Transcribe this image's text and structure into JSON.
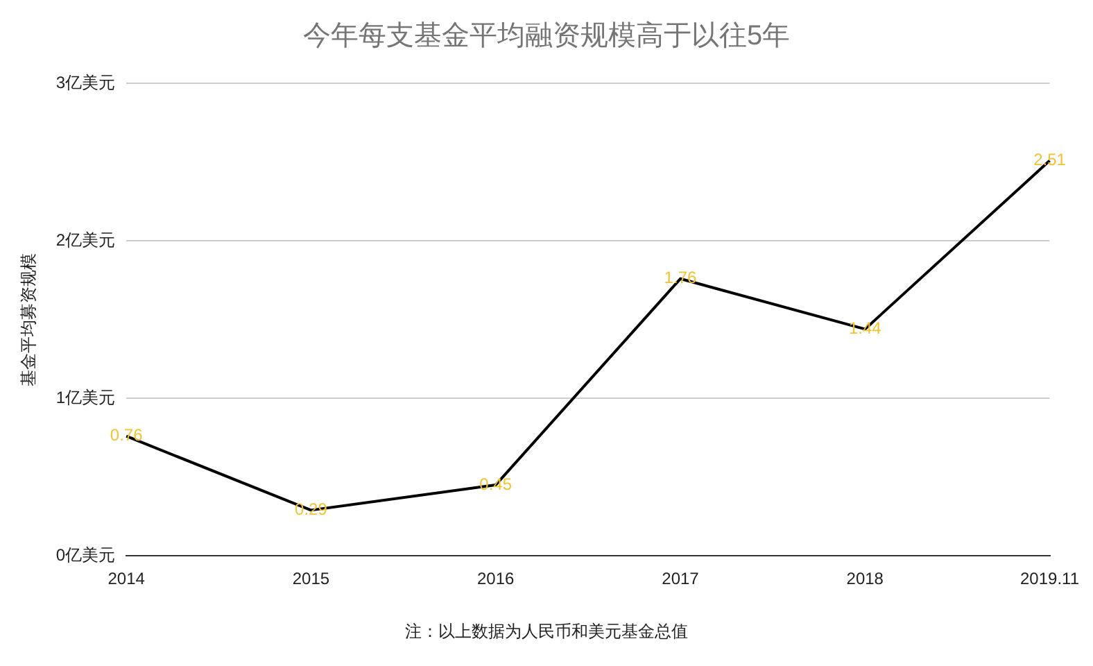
{
  "chart_data": {
    "type": "line",
    "title": "今年每支基金平均融资规模高于以往5年",
    "ylabel": "基金平均募资规模",
    "categories": [
      "2014",
      "2015",
      "2016",
      "2017",
      "2018",
      "2019.11"
    ],
    "series": [
      {
        "color": "#000000",
        "values": [
          0.76,
          0.29,
          0.45,
          1.76,
          1.44,
          2.51
        ]
      }
    ],
    "ylim": [
      0,
      3
    ],
    "yticks": [
      {
        "value": 0,
        "label": "0亿美元"
      },
      {
        "value": 1,
        "label": "1亿美元"
      },
      {
        "value": 2,
        "label": "2亿美元"
      },
      {
        "value": 3,
        "label": "3亿美元"
      }
    ],
    "grid": "y",
    "legend": false,
    "marker": "none",
    "line_style": "solid",
    "data_labels": true,
    "annotations": [
      "注：以上数据为人民币和美元基金总值"
    ]
  }
}
